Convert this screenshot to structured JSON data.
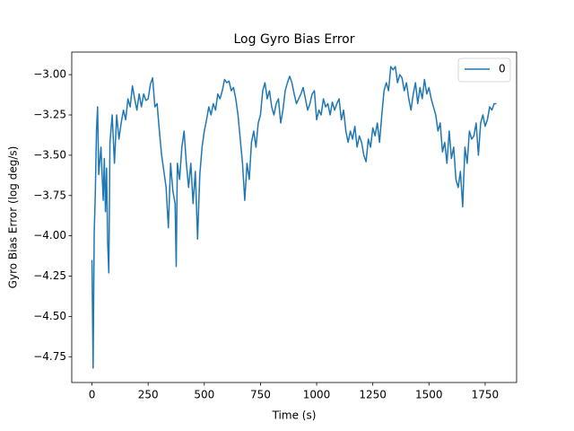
{
  "chart_data": {
    "type": "line",
    "title": "Log Gyro Bias Error",
    "xlabel": "Time (s)",
    "ylabel": "Gyro Bias Error (log deg/s)",
    "x": [
      0,
      5,
      10,
      15,
      20,
      25,
      30,
      40,
      50,
      55,
      60,
      65,
      70,
      75,
      80,
      90,
      100,
      110,
      120,
      130,
      140,
      150,
      160,
      170,
      180,
      190,
      200,
      210,
      220,
      230,
      240,
      250,
      260,
      270,
      280,
      290,
      300,
      310,
      320,
      330,
      340,
      350,
      360,
      370,
      375,
      380,
      390,
      400,
      410,
      420,
      430,
      440,
      450,
      460,
      470,
      480,
      490,
      500,
      510,
      520,
      530,
      540,
      550,
      560,
      570,
      580,
      590,
      600,
      610,
      620,
      630,
      640,
      650,
      660,
      670,
      680,
      690,
      700,
      710,
      720,
      730,
      740,
      750,
      760,
      770,
      780,
      790,
      800,
      810,
      820,
      830,
      840,
      850,
      860,
      870,
      880,
      890,
      900,
      910,
      920,
      930,
      940,
      950,
      960,
      970,
      980,
      990,
      1000,
      1010,
      1020,
      1030,
      1040,
      1050,
      1060,
      1070,
      1080,
      1090,
      1100,
      1110,
      1120,
      1130,
      1140,
      1150,
      1160,
      1170,
      1180,
      1190,
      1200,
      1210,
      1220,
      1230,
      1240,
      1250,
      1260,
      1270,
      1280,
      1290,
      1300,
      1310,
      1320,
      1330,
      1340,
      1350,
      1360,
      1370,
      1380,
      1390,
      1400,
      1410,
      1420,
      1430,
      1440,
      1450,
      1460,
      1470,
      1480,
      1490,
      1500,
      1510,
      1520,
      1530,
      1540,
      1550,
      1560,
      1570,
      1580,
      1590,
      1600,
      1610,
      1620,
      1630,
      1640,
      1650,
      1660,
      1670,
      1680,
      1690,
      1700,
      1710,
      1720,
      1730,
      1740,
      1750,
      1760,
      1770,
      1780,
      1790,
      1800
    ],
    "series": [
      {
        "name": "0",
        "color": "#1f77b4",
        "values": [
          -4.15,
          -4.82,
          -3.98,
          -3.73,
          -3.35,
          -3.2,
          -3.62,
          -3.45,
          -3.78,
          -3.52,
          -3.85,
          -3.58,
          -4.05,
          -4.23,
          -3.42,
          -3.25,
          -3.55,
          -3.25,
          -3.4,
          -3.3,
          -3.22,
          -3.28,
          -3.15,
          -3.2,
          -3.07,
          -3.15,
          -3.22,
          -3.12,
          -3.2,
          -3.12,
          -3.16,
          -3.15,
          -3.06,
          -3.02,
          -3.2,
          -3.18,
          -3.35,
          -3.5,
          -3.6,
          -3.7,
          -3.95,
          -3.55,
          -3.72,
          -3.8,
          -4.19,
          -3.55,
          -3.65,
          -3.45,
          -3.35,
          -3.55,
          -3.7,
          -3.55,
          -3.8,
          -3.6,
          -4.02,
          -3.62,
          -3.45,
          -3.35,
          -3.28,
          -3.2,
          -3.25,
          -3.18,
          -3.22,
          -3.12,
          -3.15,
          -3.1,
          -3.03,
          -3.05,
          -3.04,
          -3.1,
          -3.08,
          -3.15,
          -3.25,
          -3.4,
          -3.55,
          -3.78,
          -3.55,
          -3.65,
          -3.42,
          -3.35,
          -3.45,
          -3.3,
          -3.25,
          -3.1,
          -3.05,
          -3.15,
          -3.1,
          -3.2,
          -3.25,
          -3.18,
          -3.15,
          -3.3,
          -3.22,
          -3.1,
          -3.05,
          -3.01,
          -3.05,
          -3.12,
          -3.18,
          -3.15,
          -3.12,
          -3.08,
          -3.15,
          -3.22,
          -3.18,
          -3.12,
          -3.1,
          -3.28,
          -3.22,
          -3.25,
          -3.15,
          -3.2,
          -3.18,
          -3.25,
          -3.17,
          -3.22,
          -3.18,
          -3.15,
          -3.28,
          -3.22,
          -3.35,
          -3.42,
          -3.35,
          -3.4,
          -3.32,
          -3.45,
          -3.38,
          -3.42,
          -3.5,
          -3.54,
          -3.4,
          -3.45,
          -3.33,
          -3.38,
          -3.3,
          -3.42,
          -3.25,
          -3.1,
          -3.05,
          -3.1,
          -2.95,
          -2.97,
          -2.95,
          -3.05,
          -3.0,
          -3.02,
          -3.1,
          -3.05,
          -3.15,
          -3.22,
          -3.12,
          -3.05,
          -3.18,
          -3.08,
          -3.15,
          -3.03,
          -3.12,
          -3.08,
          -3.15,
          -3.2,
          -3.25,
          -3.35,
          -3.3,
          -3.48,
          -3.42,
          -3.55,
          -3.35,
          -3.52,
          -3.45,
          -3.65,
          -3.7,
          -3.6,
          -3.82,
          -3.45,
          -3.55,
          -3.35,
          -3.4,
          -3.38,
          -3.3,
          -3.5,
          -3.3,
          -3.25,
          -3.32,
          -3.28,
          -3.2,
          -3.22,
          -3.18,
          -3.18
        ]
      }
    ],
    "xlim": [
      -90,
      1890
    ],
    "xticks": [
      0,
      250,
      500,
      750,
      1000,
      1250,
      1500,
      1750
    ],
    "ylim": [
      -4.91,
      -2.86
    ],
    "yticks": [
      {
        "value": -4.75,
        "label": "−4.75"
      },
      {
        "value": -4.5,
        "label": "−4.50"
      },
      {
        "value": -4.25,
        "label": "−4.25"
      },
      {
        "value": -4.0,
        "label": "−4.00"
      },
      {
        "value": -3.75,
        "label": "−3.75"
      },
      {
        "value": -3.5,
        "label": "−3.50"
      },
      {
        "value": -3.25,
        "label": "−3.25"
      },
      {
        "value": -3.0,
        "label": "−3.00"
      }
    ],
    "legend": "upper right"
  }
}
